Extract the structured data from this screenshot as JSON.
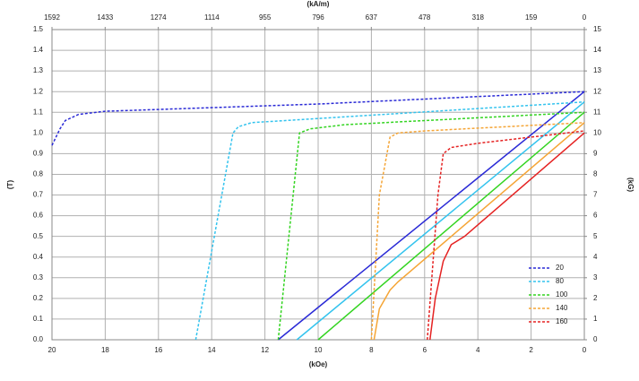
{
  "chart_data": {
    "type": "line",
    "xlabel": "(kOe)",
    "x2label": "(kA/m)",
    "ylabel": "(T)",
    "y2label": "(kG)",
    "xlim": [
      20,
      0
    ],
    "xticks": [
      20,
      18,
      16,
      14,
      12,
      10,
      8,
      6,
      4,
      2,
      0
    ],
    "x2lim": [
      1592,
      0
    ],
    "x2ticks": [
      1592,
      1433,
      1274,
      1114,
      955,
      796,
      637,
      478,
      318,
      159,
      0
    ],
    "ylim": [
      0,
      1.5
    ],
    "yticks": [
      {
        "value": 0,
        "label": "0.0"
      },
      0.1,
      0.2,
      0.3,
      0.4,
      0.5,
      0.6,
      0.7,
      0.8,
      0.9,
      {
        "value": 1,
        "label": "1.0"
      },
      1.1,
      1.2,
      1.3,
      1.4,
      1.5
    ],
    "y2lim": [
      0,
      15
    ],
    "y2ticks": [
      0,
      1,
      2,
      3,
      4,
      5,
      6,
      7,
      8,
      9,
      10,
      11,
      12,
      13,
      14,
      15
    ],
    "grid": true,
    "legend": "lower right",
    "series": [
      {
        "name": "20",
        "color": "#2a2ad6",
        "x": [
          20,
          19.7,
          19.5,
          19,
          18,
          10,
          0
        ],
        "values": [
          0.94,
          1.02,
          1.06,
          1.09,
          1.105,
          1.14,
          1.2
        ],
        "normal": {
          "x": [
            11.5,
            0
          ],
          "values": [
            0,
            1.2
          ]
        }
      },
      {
        "name": "80",
        "color": "#33c3ee",
        "x": [
          14.6,
          13.2,
          13,
          12.5,
          10,
          0
        ],
        "values": [
          0,
          1.0,
          1.03,
          1.05,
          1.07,
          1.15
        ],
        "normal": {
          "x": [
            10.8,
            0
          ],
          "values": [
            0,
            1.15
          ]
        }
      },
      {
        "name": "100",
        "color": "#33d421",
        "x": [
          11.5,
          10.7,
          10.3,
          9,
          0
        ],
        "values": [
          0,
          1.0,
          1.02,
          1.04,
          1.1
        ],
        "normal": {
          "x": [
            10,
            0
          ],
          "values": [
            0,
            1.1
          ]
        }
      },
      {
        "name": "140",
        "color": "#f5a536",
        "x": [
          8,
          7.7,
          7.3,
          7,
          6,
          0
        ],
        "values": [
          0,
          0.7,
          0.98,
          1.0,
          1.01,
          1.05
        ],
        "normal": {
          "x": [
            7.9,
            7.7,
            7.3,
            7,
            0
          ],
          "values": [
            0,
            0.15,
            0.24,
            0.28,
            1.05
          ]
        }
      },
      {
        "name": "160",
        "color": "#e52222",
        "x": [
          5.9,
          5.5,
          5.3,
          5,
          4,
          0
        ],
        "values": [
          0,
          0.7,
          0.9,
          0.93,
          0.95,
          1.01
        ],
        "normal": {
          "x": [
            5.8,
            5.6,
            5.3,
            5,
            4.5,
            0
          ],
          "values": [
            0,
            0.2,
            0.38,
            0.46,
            0.5,
            1.0
          ]
        }
      }
    ]
  }
}
